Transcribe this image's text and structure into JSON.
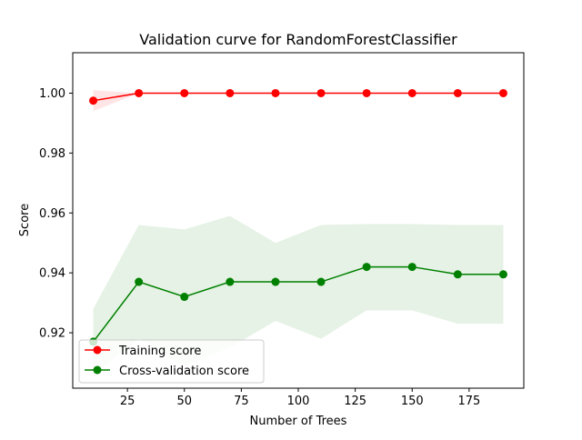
{
  "chart_data": {
    "type": "line",
    "title": "Validation curve for RandomForestClassifier",
    "xlabel": "Number of Trees",
    "ylabel": "Score",
    "xlim": [
      1,
      199
    ],
    "ylim": [
      0.9015,
      1.0135
    ],
    "xticks": [
      25,
      50,
      75,
      100,
      125,
      150,
      175
    ],
    "xtick_labels": [
      "25",
      "50",
      "75",
      "100",
      "125",
      "150",
      "175"
    ],
    "yticks": [
      0.92,
      0.94,
      0.96,
      0.98,
      1.0
    ],
    "ytick_labels": [
      "0.92",
      "0.94",
      "0.96",
      "0.98",
      "1.00"
    ],
    "grid": false,
    "legend_position": "bottom-left",
    "x": [
      10,
      30,
      50,
      70,
      90,
      110,
      130,
      150,
      170,
      190
    ],
    "series": [
      {
        "name": "Training score",
        "color": "#ff0000",
        "band_color": "#ff0000",
        "values": [
          0.9975,
          1.0,
          1.0,
          1.0,
          1.0,
          1.0,
          1.0,
          1.0,
          1.0,
          1.0
        ],
        "band_lower": [
          0.994,
          1.0,
          1.0,
          1.0,
          1.0,
          1.0,
          1.0,
          1.0,
          1.0,
          1.0
        ],
        "band_upper": [
          1.001,
          1.0,
          1.0,
          1.0,
          1.0,
          1.0,
          1.0,
          1.0,
          1.0,
          1.0
        ]
      },
      {
        "name": "Cross-validation score",
        "color": "#008000",
        "band_color": "#008000",
        "values": [
          0.917,
          0.937,
          0.932,
          0.937,
          0.937,
          0.937,
          0.942,
          0.942,
          0.9395,
          0.9395
        ],
        "band_lower": [
          0.906,
          0.918,
          0.909,
          0.915,
          0.924,
          0.918,
          0.9275,
          0.9275,
          0.923,
          0.923
        ],
        "band_upper": [
          0.928,
          0.956,
          0.9545,
          0.959,
          0.95,
          0.956,
          0.9563,
          0.9563,
          0.956,
          0.956
        ]
      }
    ]
  }
}
